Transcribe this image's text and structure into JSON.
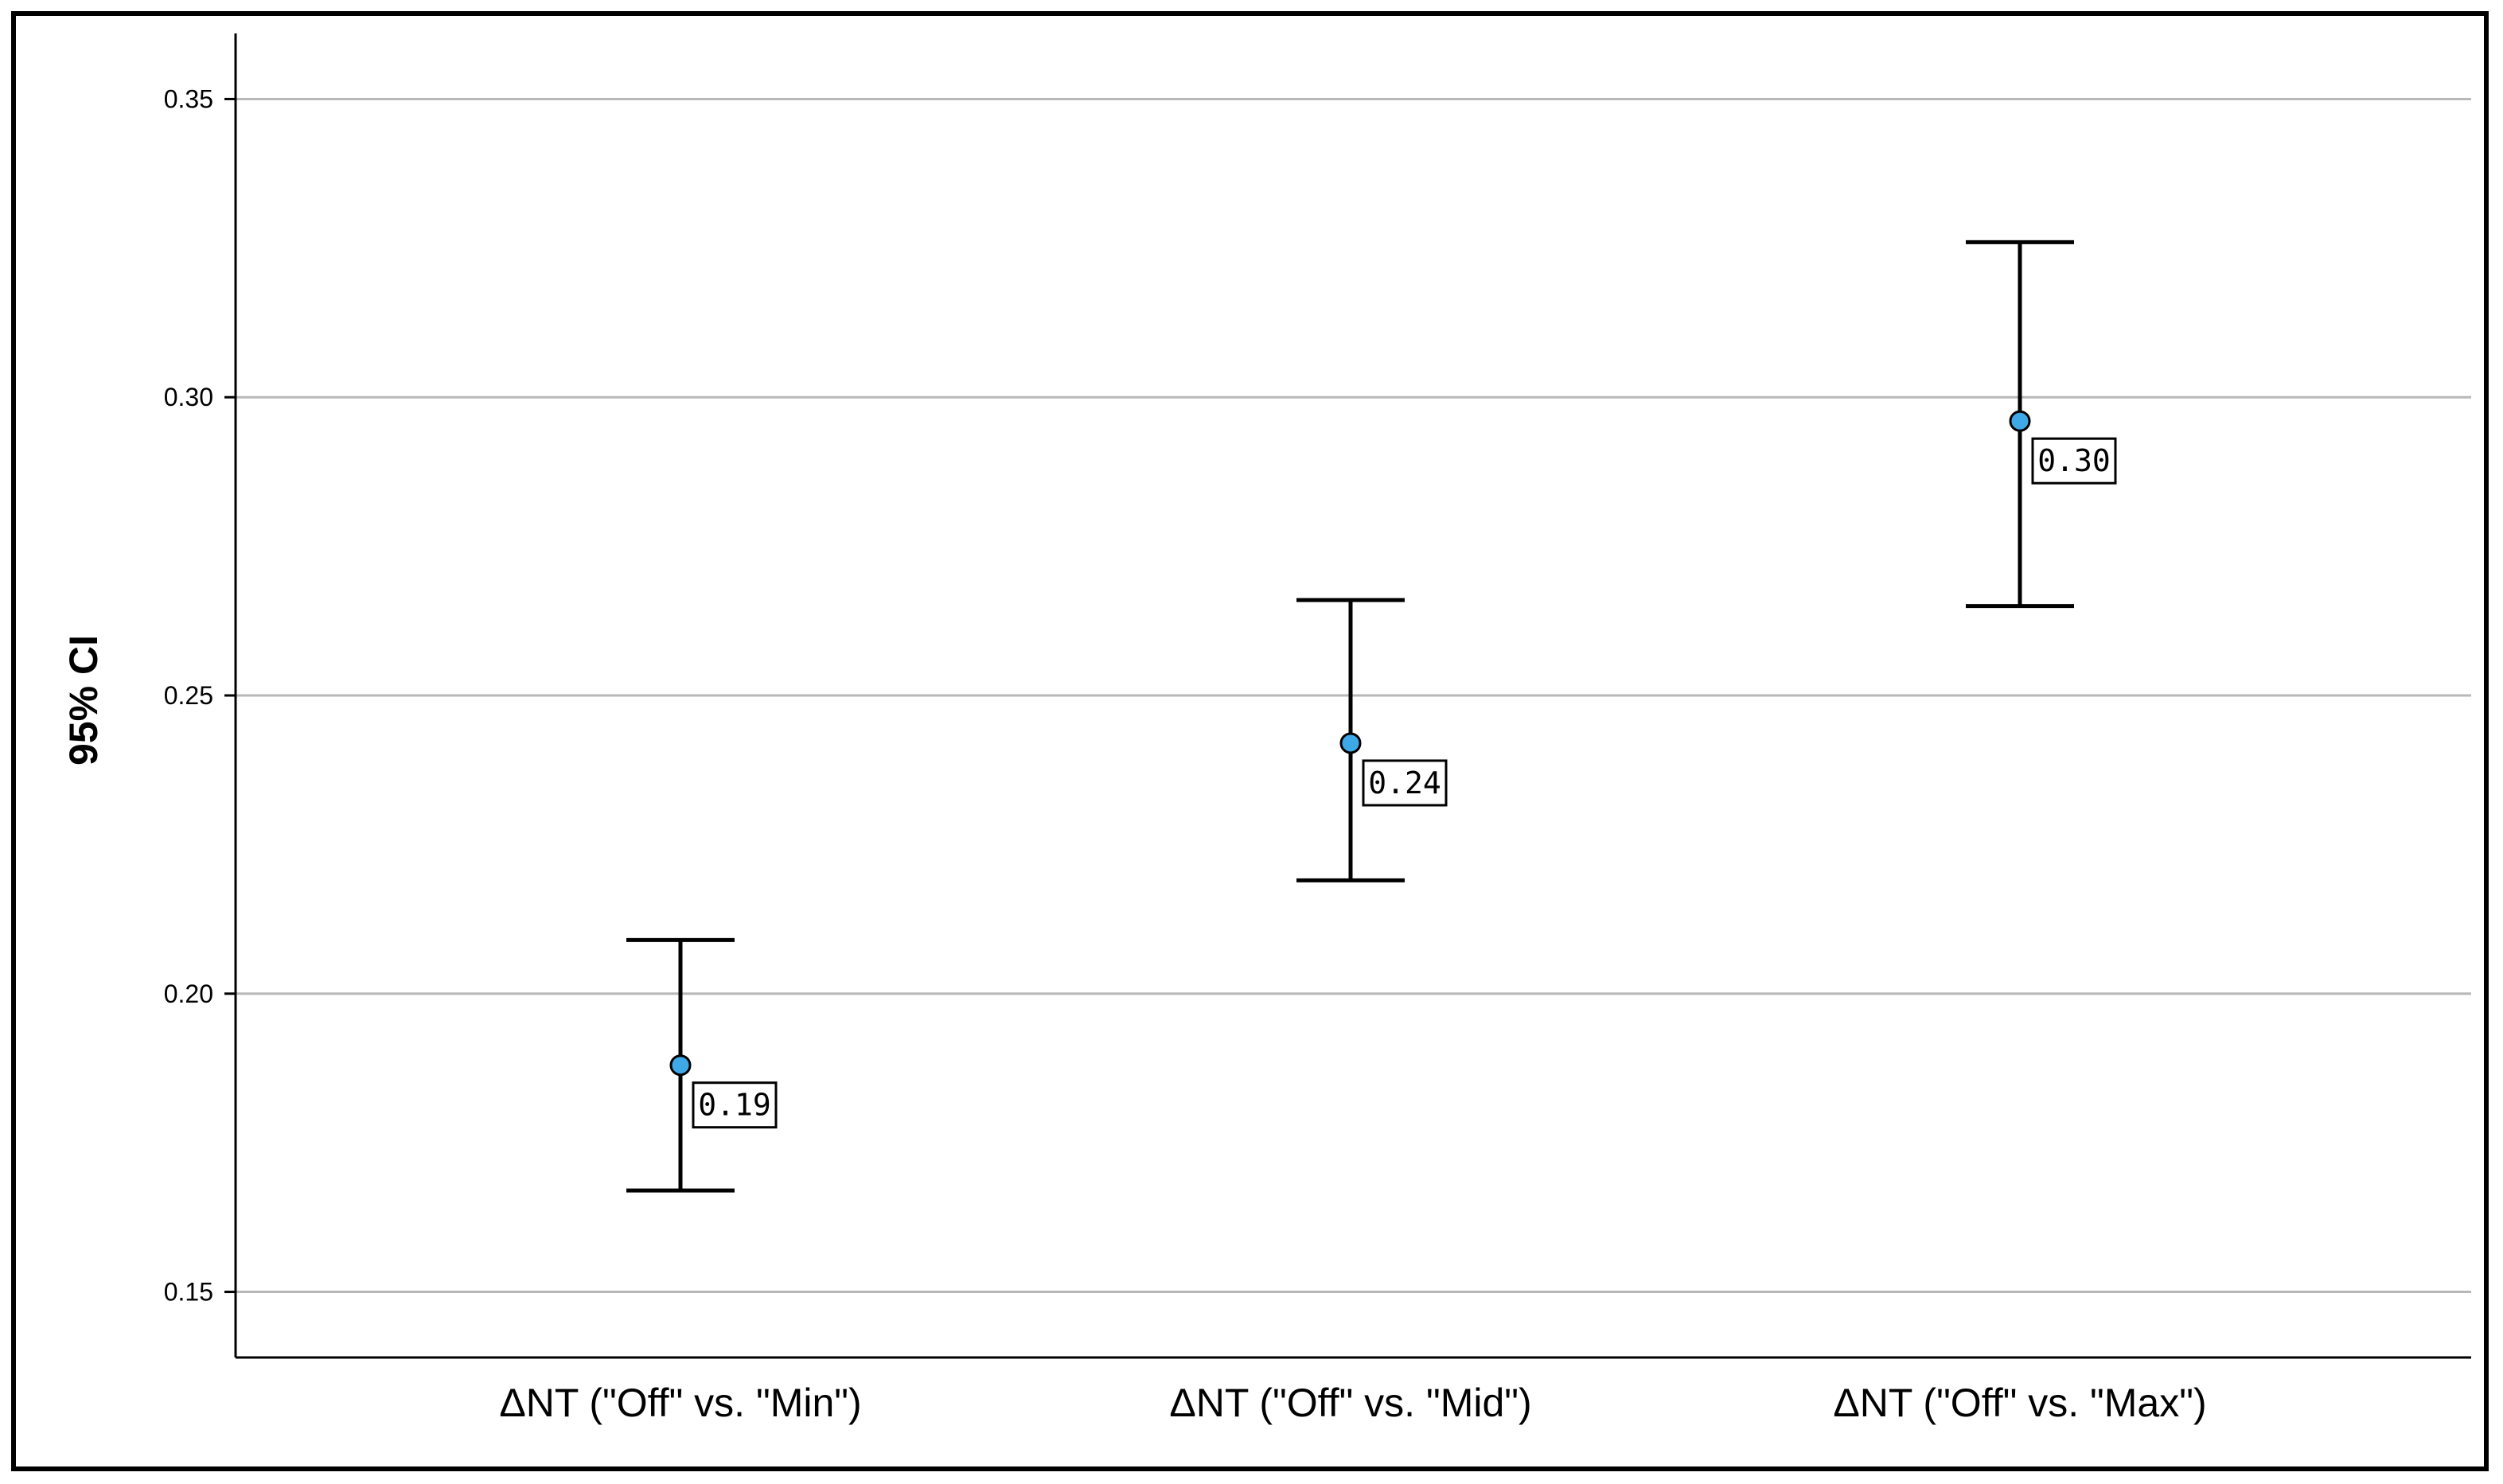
{
  "chart_data": {
    "type": "scatter",
    "ylabel": "95% CI",
    "xlabel": "",
    "ylim": [
      0.139,
      0.361
    ],
    "yticks": [
      "0.15",
      "0.20",
      "0.25",
      "0.30",
      "0.35"
    ],
    "grid": true,
    "categories": [
      "ΔNT (\"Off\" vs. \"Min\")",
      "ΔNT (\"Off\" vs. \"Mid\")",
      "ΔNT (\"Off\" vs. \"Max\")"
    ],
    "series": [
      {
        "values": [
          0.188,
          0.242,
          0.296
        ],
        "lower": [
          0.167,
          0.219,
          0.265
        ],
        "upper": [
          0.209,
          0.266,
          0.326
        ],
        "labels": [
          "0.19",
          "0.24",
          "0.30"
        ]
      }
    ],
    "colors": {
      "point": "#3fa9e8",
      "grid": "#b8b8b8",
      "axis": "#000000"
    }
  }
}
